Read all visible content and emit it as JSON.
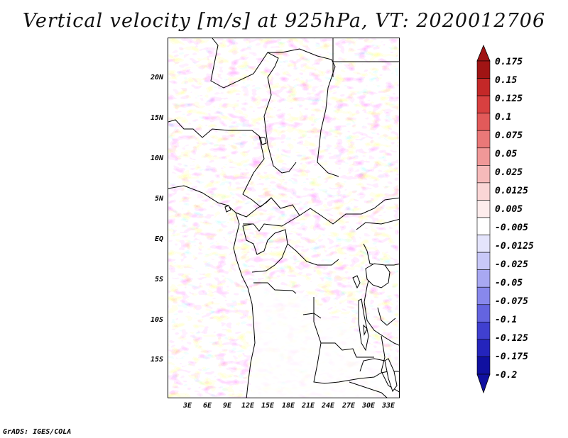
{
  "title": "Vertical velocity [m/s] at 925hPa, VT: 2020012706",
  "credit": "GrADS: IGES/COLA",
  "map": {
    "lat_labels": [
      "20N",
      "15N",
      "10N",
      "5N",
      "EQ",
      "5S",
      "10S",
      "15S"
    ],
    "lon_labels": [
      "3E",
      "6E",
      "9E",
      "12E",
      "15E",
      "18E",
      "21E",
      "24E",
      "27E",
      "30E",
      "33E"
    ]
  },
  "colorbar": {
    "levels": [
      "0.175",
      "0.15",
      "0.125",
      "0.1",
      "0.075",
      "0.05",
      "0.025",
      "0.0125",
      "0.005",
      "-0.005",
      "-0.0125",
      "-0.025",
      "-0.05",
      "-0.075",
      "-0.1",
      "-0.125",
      "-0.175",
      "-0.2"
    ],
    "colors": [
      "#a01414",
      "#c42828",
      "#d84040",
      "#e25a5a",
      "#ea7878",
      "#f09898",
      "#f6baba",
      "#fad6d6",
      "#fdecec",
      "#ffffff",
      "#e4e4fc",
      "#c8c8f8",
      "#a8a8f2",
      "#8888ec",
      "#6464e0",
      "#4040d0",
      "#2424bc",
      "#1010a0"
    ],
    "top_color": "#a01414",
    "bottom_color": "#1010a0"
  }
}
